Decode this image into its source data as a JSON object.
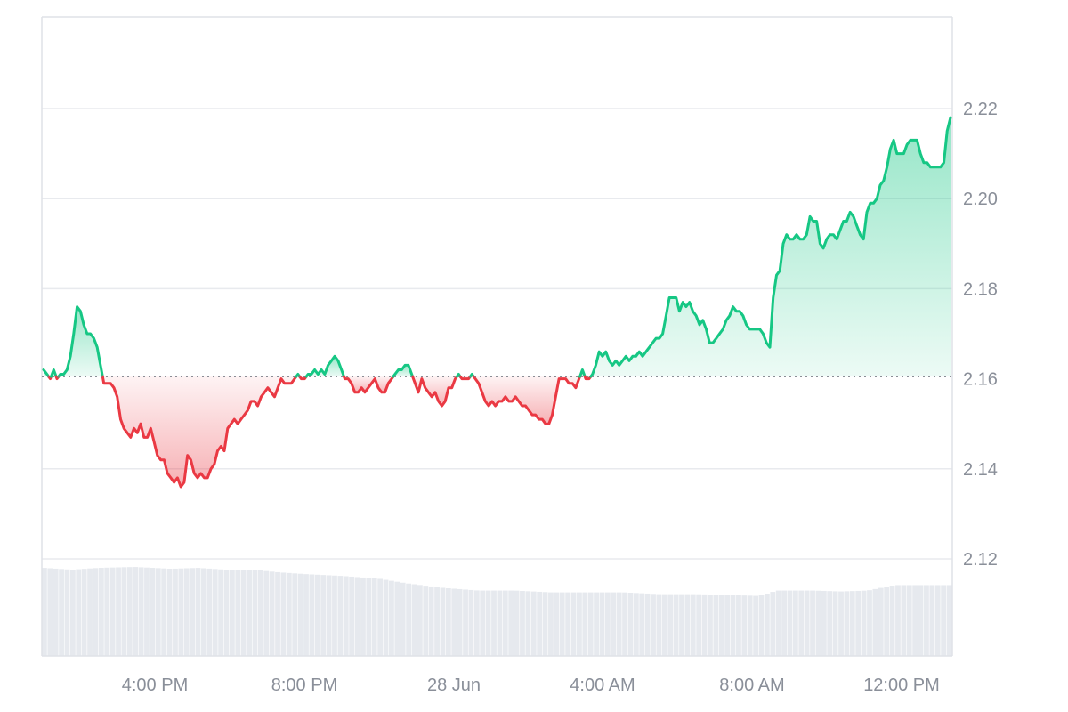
{
  "chart_data": {
    "type": "area",
    "baseline": 2.1605,
    "ylim": [
      2.1,
      2.24
    ],
    "y_ticks": [
      "2.22",
      "2.20",
      "2.18",
      "2.16",
      "2.14",
      "2.12"
    ],
    "x_ticks": [
      "4:00 PM",
      "8:00 PM",
      "28 Jun",
      "4:00 AM",
      "8:00 AM",
      "12:00 PM"
    ],
    "grid": true,
    "colors": {
      "up_line": "#16c784",
      "down_line": "#ea3943",
      "up_fill": "#16c784",
      "down_fill": "#ea3943",
      "volume": "#e6e9ee",
      "grid": "#e8eaee",
      "frame": "#dfe2e7",
      "baseline": "#7a7f88"
    },
    "series": [
      {
        "values": [
          2.162,
          2.161,
          2.16,
          2.162,
          2.16,
          2.161,
          2.161,
          2.162,
          2.165,
          2.17,
          2.176,
          2.175,
          2.172,
          2.17,
          2.17,
          2.169,
          2.167,
          2.163,
          2.159,
          2.159,
          2.159,
          2.158,
          2.156,
          2.151,
          2.149,
          2.148,
          2.147,
          2.149,
          2.148,
          2.15,
          2.147,
          2.147,
          2.149,
          2.146,
          2.143,
          2.142,
          2.142,
          2.139,
          2.138,
          2.137,
          2.138,
          2.136,
          2.137,
          2.143,
          2.142,
          2.139,
          2.138,
          2.139,
          2.138,
          2.138,
          2.14,
          2.141,
          2.144,
          2.145,
          2.144,
          2.149,
          2.15,
          2.151,
          2.15,
          2.151,
          2.152,
          2.153,
          2.155,
          2.155,
          2.154,
          2.156,
          2.157,
          2.158,
          2.157,
          2.156,
          2.158,
          2.16,
          2.159,
          2.159,
          2.159,
          2.16,
          2.161,
          2.16,
          2.16,
          2.161,
          2.161,
          2.162,
          2.161,
          2.162,
          2.161,
          2.163,
          2.164,
          2.165,
          2.164,
          2.162,
          2.16,
          2.16,
          2.159,
          2.157,
          2.157,
          2.158,
          2.157,
          2.158,
          2.159,
          2.16,
          2.158,
          2.157,
          2.157,
          2.159,
          2.16,
          2.161,
          2.162,
          2.162,
          2.163,
          2.163,
          2.161,
          2.159,
          2.157,
          2.16,
          2.158,
          2.157,
          2.156,
          2.157,
          2.155,
          2.154,
          2.155,
          2.158,
          2.158,
          2.16,
          2.161,
          2.16,
          2.16,
          2.16,
          2.161,
          2.16,
          2.159,
          2.157,
          2.155,
          2.154,
          2.155,
          2.154,
          2.155,
          2.155,
          2.156,
          2.155,
          2.155,
          2.156,
          2.155,
          2.154,
          2.154,
          2.153,
          2.152,
          2.152,
          2.151,
          2.151,
          2.15,
          2.15,
          2.152,
          2.156,
          2.16,
          2.16,
          2.16,
          2.159,
          2.159,
          2.158,
          2.16,
          2.162,
          2.16,
          2.16,
          2.161,
          2.163,
          2.166,
          2.165,
          2.166,
          2.164,
          2.163,
          2.164,
          2.163,
          2.164,
          2.165,
          2.164,
          2.165,
          2.165,
          2.166,
          2.165,
          2.166,
          2.167,
          2.168,
          2.169,
          2.169,
          2.17,
          2.174,
          2.178,
          2.178,
          2.178,
          2.175,
          2.177,
          2.176,
          2.177,
          2.175,
          2.174,
          2.172,
          2.173,
          2.171,
          2.168,
          2.168,
          2.169,
          2.17,
          2.171,
          2.173,
          2.174,
          2.176,
          2.175,
          2.175,
          2.174,
          2.172,
          2.171,
          2.171,
          2.171,
          2.171,
          2.17,
          2.168,
          2.167,
          2.178,
          2.183,
          2.184,
          2.19,
          2.192,
          2.191,
          2.191,
          2.192,
          2.191,
          2.191,
          2.192,
          2.196,
          2.195,
          2.195,
          2.19,
          2.189,
          2.191,
          2.192,
          2.192,
          2.191,
          2.193,
          2.195,
          2.195,
          2.197,
          2.196,
          2.194,
          2.192,
          2.191,
          2.197,
          2.199,
          2.199,
          2.2,
          2.203,
          2.204,
          2.207,
          2.211,
          2.213,
          2.21,
          2.21,
          2.21,
          2.212,
          2.213,
          2.213,
          2.213,
          2.21,
          2.208,
          2.208,
          2.207,
          2.207,
          2.207,
          2.207,
          2.208,
          2.215,
          2.218
        ]
      }
    ],
    "volume_profile": [
      [
        0,
        0.97
      ],
      [
        0.03,
        0.95
      ],
      [
        0.06,
        0.97
      ],
      [
        0.1,
        0.98
      ],
      [
        0.14,
        0.96
      ],
      [
        0.17,
        0.97
      ],
      [
        0.2,
        0.95
      ],
      [
        0.23,
        0.95
      ],
      [
        0.26,
        0.92
      ],
      [
        0.29,
        0.9
      ],
      [
        0.33,
        0.88
      ],
      [
        0.37,
        0.85
      ],
      [
        0.4,
        0.8
      ],
      [
        0.44,
        0.75
      ],
      [
        0.48,
        0.72
      ],
      [
        0.52,
        0.72
      ],
      [
        0.56,
        0.7
      ],
      [
        0.6,
        0.7
      ],
      [
        0.64,
        0.7
      ],
      [
        0.68,
        0.68
      ],
      [
        0.72,
        0.68
      ],
      [
        0.76,
        0.67
      ],
      [
        0.79,
        0.66
      ],
      [
        0.81,
        0.72
      ],
      [
        0.85,
        0.72
      ],
      [
        0.88,
        0.71
      ],
      [
        0.91,
        0.72
      ],
      [
        0.94,
        0.78
      ],
      [
        0.97,
        0.78
      ],
      [
        0.995,
        0.78
      ]
    ]
  }
}
